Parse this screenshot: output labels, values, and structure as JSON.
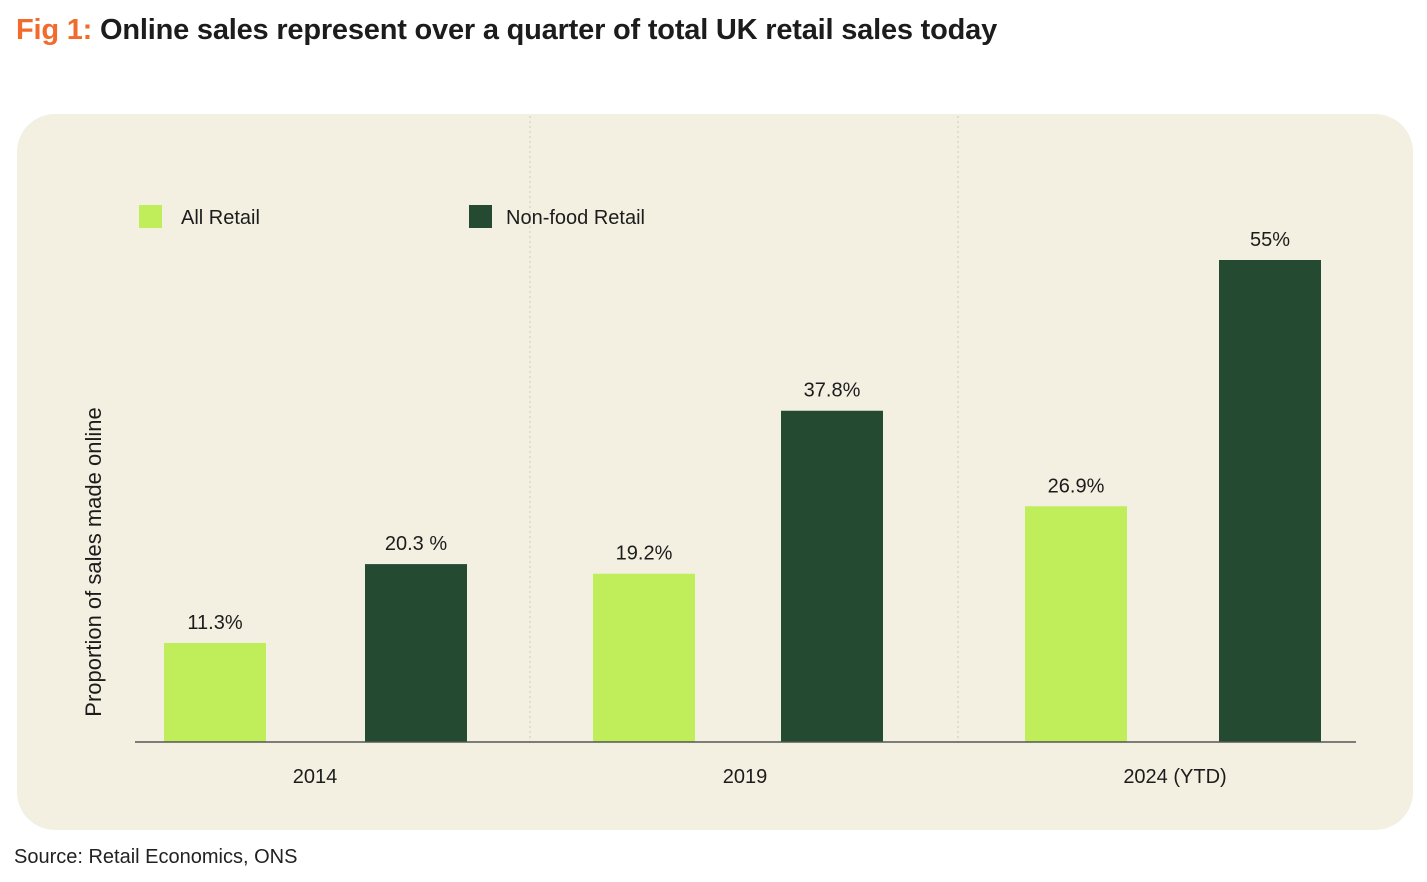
{
  "title": {
    "prefix": "Fig 1:",
    "text": "Online sales represent over a quarter of total UK retail sales today"
  },
  "source": "Source: Retail Economics, ONS",
  "colors": {
    "title_prefix": "#f26b2d",
    "all_retail": "#bfee5a",
    "non_food_retail": "#244a31",
    "panel_bg": "#f3f0e2"
  },
  "chart_data": {
    "type": "bar",
    "title": "Online sales represent over a quarter of total UK retail sales today",
    "xlabel": "",
    "ylabel": "Proportion of sales made online",
    "ylim": [
      0,
      55
    ],
    "grid": false,
    "legend_position": "top-left",
    "categories": [
      "2014",
      "2019",
      "2024 (YTD)"
    ],
    "series": [
      {
        "name": "All Retail",
        "color": "#bfee5a",
        "values": [
          11.3,
          19.2,
          26.9
        ],
        "labels": [
          "11.3%",
          "19.2%",
          "26.9%"
        ]
      },
      {
        "name": "Non-food Retail",
        "color": "#244a31",
        "values": [
          20.3,
          37.8,
          55
        ],
        "labels": [
          "20.3 %",
          "37.8%",
          "55%"
        ]
      }
    ]
  }
}
